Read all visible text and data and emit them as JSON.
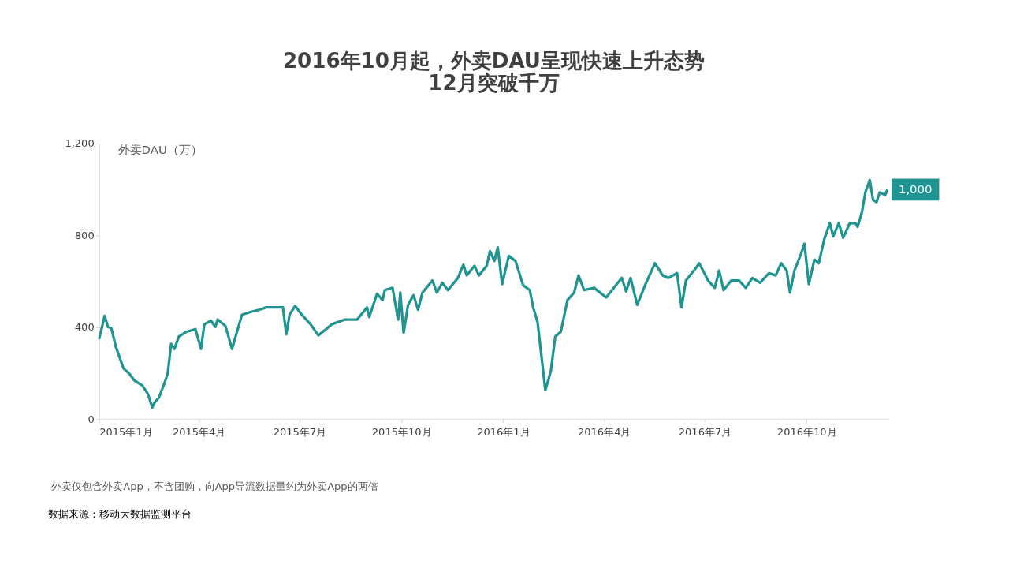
{
  "chart_data": {
    "type": "line",
    "title": "2016年10月起，外卖DAU呈现快速上升态势\n12月突破千万",
    "ylabel": "外卖DAU（万）",
    "x": [
      "2015-01-01",
      "2015-01-06",
      "2015-01-09",
      "2015-01-12",
      "2015-01-16",
      "2015-01-23",
      "2015-01-28",
      "2015-02-02",
      "2015-02-09",
      "2015-02-14",
      "2015-02-18",
      "2015-02-20",
      "2015-02-24",
      "2015-03-01",
      "2015-03-04",
      "2015-03-07",
      "2015-03-10",
      "2015-03-14",
      "2015-03-21",
      "2015-03-29",
      "2015-04-03",
      "2015-04-06",
      "2015-04-12",
      "2015-04-16",
      "2015-04-18",
      "2015-04-25",
      "2015-05-01",
      "2015-05-10",
      "2015-05-17",
      "2015-05-26",
      "2015-06-01",
      "2015-06-08",
      "2015-06-16",
      "2015-06-19",
      "2015-06-22",
      "2015-06-27",
      "2015-07-03",
      "2015-07-11",
      "2015-07-18",
      "2015-07-25",
      "2015-07-30",
      "2015-08-11",
      "2015-08-22",
      "2015-08-31",
      "2015-09-02",
      "2015-09-09",
      "2015-09-14",
      "2015-09-16",
      "2015-09-23",
      "2015-09-28",
      "2015-09-30",
      "2015-10-03",
      "2015-10-07",
      "2015-10-12",
      "2015-10-16",
      "2015-10-20",
      "2015-10-29",
      "2015-11-02",
      "2015-11-07",
      "2015-11-12",
      "2015-11-21",
      "2015-11-26",
      "2015-11-29",
      "2015-12-06",
      "2015-12-10",
      "2015-12-17",
      "2015-12-20",
      "2015-12-24",
      "2015-12-27",
      "2015-12-31",
      "2016-01-06",
      "2016-01-12",
      "2016-01-19",
      "2016-01-25",
      "2016-01-28",
      "2016-02-01",
      "2016-02-08",
      "2016-02-13",
      "2016-02-17",
      "2016-02-22",
      "2016-02-28",
      "2016-03-05",
      "2016-03-09",
      "2016-03-14",
      "2016-03-23",
      "2016-04-03",
      "2016-04-17",
      "2016-04-21",
      "2016-04-25",
      "2016-05-01",
      "2016-05-09",
      "2016-05-17",
      "2016-05-24",
      "2016-05-29",
      "2016-06-06",
      "2016-06-10",
      "2016-06-14",
      "2016-06-22",
      "2016-06-26",
      "2016-07-04",
      "2016-07-10",
      "2016-07-14",
      "2016-07-18",
      "2016-07-25",
      "2016-08-01",
      "2016-08-07",
      "2016-08-13",
      "2016-08-20",
      "2016-08-28",
      "2016-09-03",
      "2016-09-08",
      "2016-09-13",
      "2016-09-16",
      "2016-09-20",
      "2016-09-26",
      "2016-09-29",
      "2016-10-03",
      "2016-10-08",
      "2016-10-12",
      "2016-10-17",
      "2016-10-22",
      "2016-10-25",
      "2016-10-30",
      "2016-11-03",
      "2016-11-09",
      "2016-11-14",
      "2016-11-16",
      "2016-11-20",
      "2016-11-23",
      "2016-11-27",
      "2016-11-30",
      "2016-12-03",
      "2016-12-06",
      "2016-12-11",
      "2016-12-13"
    ],
    "series": [
      {
        "color": "#1f9490",
        "values": [
          349,
          450,
          402,
          397,
          317,
          221,
          200,
          168,
          147,
          110,
          51,
          72,
          94,
          157,
          200,
          328,
          306,
          360,
          381,
          392,
          306,
          413,
          429,
          402,
          434,
          407,
          306,
          455,
          466,
          477,
          487,
          487,
          487,
          370,
          455,
          493,
          455,
          413,
          365,
          392,
          413,
          434,
          434,
          487,
          445,
          546,
          519,
          562,
          572,
          434,
          551,
          376,
          498,
          540,
          477,
          551,
          604,
          551,
          594,
          562,
          615,
          673,
          626,
          668,
          626,
          668,
          732,
          689,
          748,
          588,
          711,
          689,
          583,
          562,
          487,
          423,
          126,
          211,
          360,
          381,
          519,
          551,
          626,
          562,
          572,
          530,
          615,
          556,
          615,
          498,
          594,
          679,
          626,
          615,
          636,
          487,
          604,
          652,
          679,
          604,
          572,
          647,
          562,
          604,
          604,
          572,
          615,
          594,
          636,
          626,
          679,
          647,
          551,
          647,
          721,
          764,
          588,
          695,
          679,
          785,
          854,
          796,
          854,
          790,
          854,
          854,
          838,
          902,
          987,
          1041,
          955,
          945,
          987,
          977,
          1000
        ]
      }
    ],
    "xlim": [
      "2015-01-01",
      "2016-12-14"
    ],
    "xticks": [
      {
        "value": "2015-01-01",
        "label": "2015年1月"
      },
      {
        "value": "2015-04-01",
        "label": "2015年4月"
      },
      {
        "value": "2015-07-01",
        "label": "2015年7月"
      },
      {
        "value": "2015-10-01",
        "label": "2015年10月"
      },
      {
        "value": "2016-01-01",
        "label": "2016年1月"
      },
      {
        "value": "2016-04-01",
        "label": "2016年4月"
      },
      {
        "value": "2016-07-01",
        "label": "2016年7月"
      },
      {
        "value": "2016-10-01",
        "label": "2016年10月"
      }
    ],
    "ylim": [
      0,
      1200
    ],
    "yticks": [
      0,
      400,
      800,
      {
        "value": 1200,
        "label": "1,200"
      }
    ],
    "grid": false,
    "marker": "none",
    "line_style": "solid",
    "annotations": [
      {
        "text": "1,000",
        "x": "2016-12-13",
        "y": 1000
      },
      "外卖仅包含外卖App，不含团购，向App导流数据量约为外卖App的两倍",
      "数据来源：移动大数据监测平台"
    ]
  }
}
